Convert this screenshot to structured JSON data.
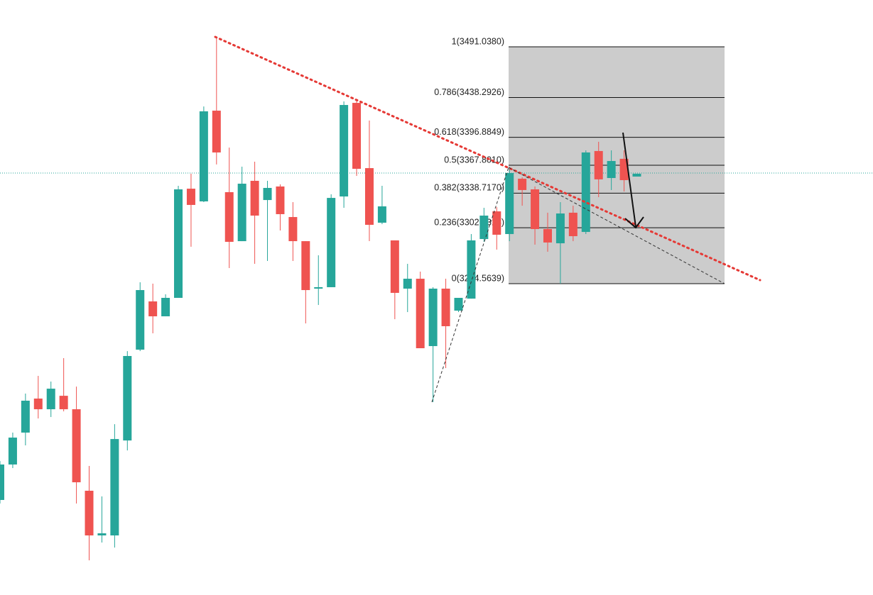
{
  "chart_data": {
    "type": "candlestick",
    "up_color": "#26a69a",
    "down_color": "#ef5350",
    "fib_levels": [
      {
        "value": 3491.038,
        "label": "1(3491.0380)"
      },
      {
        "value": 3438.2926,
        "label": "0.786(3438.2926)"
      },
      {
        "value": 3396.8849,
        "label": "0.618(3396.8849)"
      },
      {
        "value": 3367.801,
        "label": "0.5(3367.8010)"
      },
      {
        "value": 3338.717,
        "label": "0.382(3338.7170)"
      },
      {
        "value": 3302.7318,
        "label": "0.236(3302.7318)"
      },
      {
        "value": 3244.5639,
        "label": "0(3244.5639)"
      }
    ],
    "open": [
      3019.5,
      3056.4,
      3089.6,
      3125.0,
      3113.9,
      3127.9,
      3113.9,
      3029.1,
      2982.6,
      2982.6,
      3081.4,
      3175.9,
      3226.1,
      3210.6,
      3229.8,
      3343.4,
      3330.2,
      3424.6,
      3339.8,
      3288.8,
      3351.6,
      3331.6,
      3345.7,
      3313.9,
      3288.8,
      3239.4,
      3240.9,
      3335.3,
      3432.7,
      3364.8,
      3308.0,
      3289.6,
      3239.4,
      3249.7,
      3179.6,
      3239.4,
      3216.5,
      3229.0,
      3291.0,
      3319.8,
      3296.2,
      3353.8,
      3342.7,
      3301.4,
      3286.6,
      3318.4,
      3298.4,
      3382.6,
      3354.5,
      3374.5,
      3356.0
    ],
    "high": [
      3060.0,
      3089.6,
      3130.2,
      3148.6,
      3142.7,
      3167.1,
      3137.5,
      3054.9,
      3023.2,
      3098.4,
      3174.4,
      3246.0,
      3244.6,
      3233.5,
      3346.4,
      3359.0,
      3429.0,
      3501.4,
      3386.2,
      3366.3,
      3371.5,
      3351.6,
      3347.9,
      3329.4,
      3288.8,
      3274.1,
      3337.5,
      3434.2,
      3436.4,
      3414.3,
      3346.4,
      3289.6,
      3265.2,
      3257.1,
      3240.9,
      3249.7,
      3229.8,
      3296.2,
      3323.5,
      3324.2,
      3365.6,
      3355.3,
      3345.7,
      3318.4,
      3329.4,
      3325.7,
      3383.3,
      3392.2,
      3383.3,
      3383.3,
      3359.0
    ],
    "low": [
      3015.8,
      3052.7,
      3076.3,
      3104.3,
      3105.8,
      3111.7,
      3015.8,
      2956.7,
      2975.2,
      2970.0,
      3071.1,
      3174.4,
      3192.9,
      3210.6,
      3229.8,
      3283.0,
      3329.4,
      3368.6,
      3260.8,
      3288.8,
      3265.2,
      3268.2,
      3299.9,
      3268.2,
      3203.2,
      3222.4,
      3240.9,
      3323.5,
      3356.7,
      3288.8,
      3306.5,
      3207.6,
      3215.0,
      3177.4,
      3121.3,
      3156.7,
      3215.0,
      3229.0,
      3288.1,
      3280.0,
      3288.8,
      3325.7,
      3285.2,
      3277.8,
      3244.6,
      3288.8,
      3296.2,
      3334.6,
      3342.0,
      3340.5,
      3356.0
    ],
    "close": [
      3056.4,
      3084.4,
      3122.8,
      3113.9,
      3135.3,
      3113.9,
      3037.9,
      2982.6,
      2984.8,
      3082.9,
      3169.3,
      3237.9,
      3210.6,
      3229.8,
      3342.7,
      3326.5,
      3423.9,
      3381.1,
      3288.1,
      3348.6,
      3315.4,
      3344.2,
      3316.9,
      3288.8,
      3237.9,
      3240.9,
      3333.8,
      3430.5,
      3364.1,
      3305.8,
      3325.0,
      3235.0,
      3249.7,
      3177.4,
      3239.4,
      3200.3,
      3229.8,
      3289.6,
      3315.4,
      3295.5,
      3359.7,
      3342.0,
      3301.4,
      3287.4,
      3317.6,
      3294.0,
      3381.1,
      3353.1,
      3372.2,
      3352.3,
      3359.0
    ]
  }
}
